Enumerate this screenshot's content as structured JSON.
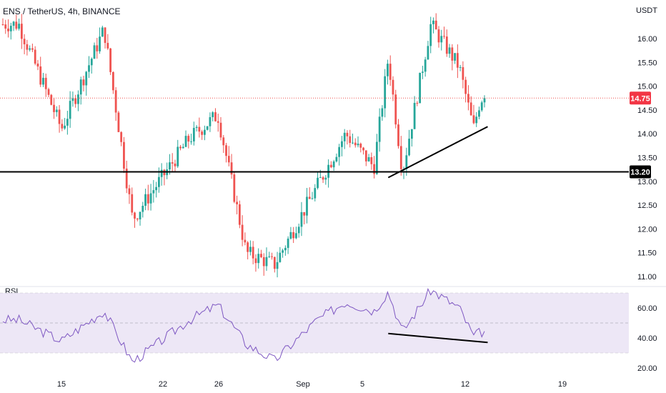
{
  "header": {
    "title": "ENS / TetherUS, 4h, BINANCE",
    "price_unit": "USDT"
  },
  "rsi_panel": {
    "title": "RSI"
  },
  "colors": {
    "up": "#26a69a",
    "down": "#ef5350",
    "rsi_line": "#7e57c2",
    "rsi_band": "#ede7f6",
    "price_line": "#ef5350",
    "drawing": "#000000",
    "axis_text": "#131722",
    "last_price_bg": "#f23645",
    "level_bg": "#000000"
  },
  "chart_data": [
    {
      "type": "candlestick",
      "title": "ENS / TetherUS, 4h, BINANCE",
      "ylabel": "USDT",
      "ylim": [
        10.95,
        16.55
      ],
      "y_ticks": [
        "11.00",
        "11.50",
        "12.00",
        "12.50",
        "13.00",
        "13.50",
        "14.00",
        "14.50",
        "15.00",
        "15.50",
        "16.00"
      ],
      "x_ticks": [
        "15",
        "22",
        "26",
        "Sep",
        "5",
        "12",
        "19"
      ],
      "last_price": 14.75,
      "last_price_label": "14.75",
      "horizontal_level": 13.2,
      "horizontal_level_label": "13.20",
      "trendline": {
        "from": {
          "date": "Sep 7",
          "price": 13.08
        },
        "to": {
          "date": "Sep 14",
          "price": 14.15
        }
      },
      "key_points": [
        {
          "date": "Aug 12",
          "price": 16.3
        },
        {
          "date": "Aug 15",
          "price": 14.1
        },
        {
          "date": "Aug 18",
          "price": 16.2
        },
        {
          "date": "Aug 20",
          "price": 12.2
        },
        {
          "date": "Aug 24",
          "price": 13.9
        },
        {
          "date": "Aug 26",
          "price": 14.4
        },
        {
          "date": "Aug 28",
          "price": 11.5
        },
        {
          "date": "Aug 30",
          "price": 11.25
        },
        {
          "date": "Sep 2",
          "price": 12.9
        },
        {
          "date": "Sep 4",
          "price": 14.0
        },
        {
          "date": "Sep 6",
          "price": 13.3
        },
        {
          "date": "Sep 7",
          "price": 15.6
        },
        {
          "date": "Sep 8",
          "price": 13.2
        },
        {
          "date": "Sep 10",
          "price": 16.3
        },
        {
          "date": "Sep 12",
          "price": 15.4
        },
        {
          "date": "Sep 13",
          "price": 14.1
        },
        {
          "date": "Sep 13.5",
          "price": 14.75
        }
      ],
      "candle_count": 180
    },
    {
      "type": "line",
      "title": "RSI",
      "ylim": [
        15,
        75
      ],
      "y_ticks": [
        "20.00",
        "40.00",
        "60.00"
      ],
      "band": [
        30,
        70
      ],
      "midline": 50,
      "trendline": {
        "from": {
          "date": "Sep 7",
          "rsi": 43
        },
        "to": {
          "date": "Sep 14",
          "rsi": 37
        }
      },
      "key_points": [
        {
          "date": "Aug 12",
          "rsi": 52
        },
        {
          "date": "Aug 15",
          "rsi": 38
        },
        {
          "date": "Aug 18",
          "rsi": 58
        },
        {
          "date": "Aug 20",
          "rsi": 24
        },
        {
          "date": "Aug 24",
          "rsi": 52
        },
        {
          "date": "Aug 26",
          "rsi": 62
        },
        {
          "date": "Aug 28",
          "rsi": 36
        },
        {
          "date": "Aug 30",
          "rsi": 25
        },
        {
          "date": "Sep 2",
          "rsi": 52
        },
        {
          "date": "Sep 4",
          "rsi": 64
        },
        {
          "date": "Sep 6",
          "rsi": 58
        },
        {
          "date": "Sep 7",
          "rsi": 71
        },
        {
          "date": "Sep 8",
          "rsi": 44
        },
        {
          "date": "Sep 10",
          "rsi": 72
        },
        {
          "date": "Sep 12",
          "rsi": 60
        },
        {
          "date": "Sep 13",
          "rsi": 41
        },
        {
          "date": "Sep 13.5",
          "rsi": 44
        }
      ]
    }
  ]
}
